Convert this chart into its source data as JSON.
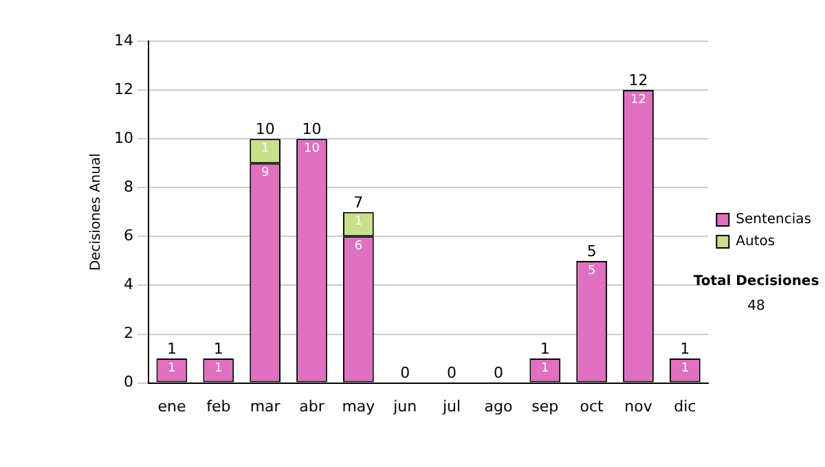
{
  "chart_data": {
    "type": "bar",
    "stacked": true,
    "ylabel": "Decisiones Anual",
    "categories": [
      "ene",
      "feb",
      "mar",
      "abr",
      "may",
      "jun",
      "jul",
      "ago",
      "sep",
      "oct",
      "nov",
      "dic"
    ],
    "series": [
      {
        "name": "Sentencias",
        "color": "#e070c0",
        "values": [
          1,
          1,
          9,
          10,
          6,
          0,
          0,
          0,
          1,
          5,
          12,
          1
        ],
        "value_labels": [
          "1",
          "1",
          "9",
          "10",
          "6",
          null,
          null,
          null,
          "1",
          "5",
          "12",
          "1"
        ]
      },
      {
        "name": "Autos",
        "color": "#c8e08c",
        "values": [
          0,
          0,
          1,
          0,
          1,
          0,
          0,
          0,
          0,
          0,
          0,
          0
        ],
        "value_labels": [
          null,
          null,
          "1",
          null,
          "1",
          null,
          null,
          null,
          null,
          null,
          null,
          null
        ]
      }
    ],
    "totals": [
      "1",
      "1",
      "10",
      "10",
      "7",
      "0",
      "0",
      "0",
      "1",
      "5",
      "12",
      "1"
    ],
    "ylim": [
      0,
      14
    ],
    "yticks": [
      0,
      2,
      4,
      6,
      8,
      10,
      12,
      14
    ],
    "grid": "y",
    "legend": "right",
    "annotations": [
      "Total Decisiones",
      "48"
    ]
  }
}
